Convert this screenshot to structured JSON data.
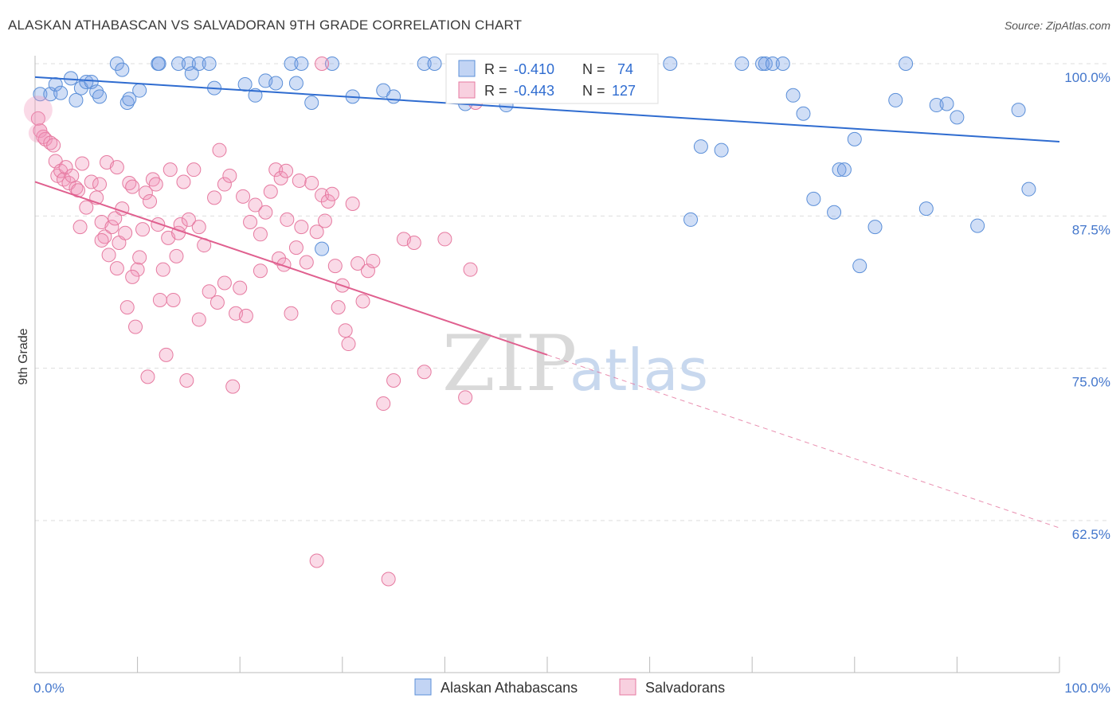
{
  "title": "ALASKAN ATHABASCAN VS SALVADORAN 9TH GRADE CORRELATION CHART",
  "source": "Source: ZipAtlas.com",
  "watermark": {
    "zip": "ZIP",
    "atlas": "atlas"
  },
  "colors": {
    "blue": "#5b8fd8",
    "blue_fill": "rgba(120,160,230,0.35)",
    "pink": "#e67aa0",
    "pink_fill": "rgba(240,150,185,0.35)",
    "blue_line": "#2f6cd0",
    "pink_line": "#e0608f",
    "grid": "#dddddd",
    "tick_text": "#4477cc"
  },
  "legend": {
    "r_label": "R =",
    "n_label": "N =",
    "series": [
      {
        "r": "-0.410",
        "n": "74"
      },
      {
        "r": "-0.443",
        "n": "127"
      }
    ]
  },
  "chart_data": {
    "type": "scatter",
    "title": "ALASKAN ATHABASCAN VS SALVADORAN 9TH GRADE CORRELATION CHART",
    "xlabel": "",
    "ylabel": "9th Grade",
    "xlim": [
      0,
      100
    ],
    "ylim": [
      52,
      101
    ],
    "x_tick_labels": [
      "0.0%",
      "100.0%"
    ],
    "y_ticks": [
      100,
      87.5,
      75,
      62.5
    ],
    "y_tick_labels": [
      "100.0%",
      "87.5%",
      "75.0%",
      "62.5%"
    ],
    "grid": true,
    "legend_position": "top-center",
    "series": [
      {
        "name": "Alaskan Athabascans",
        "color": "#5b8fd8",
        "trend": {
          "x": [
            0,
            100
          ],
          "y": [
            98.9,
            93.6
          ],
          "dashed_from": null
        },
        "points": [
          [
            0.5,
            97.5
          ],
          [
            1.5,
            97.5
          ],
          [
            2,
            98.3
          ],
          [
            2.5,
            97.6
          ],
          [
            3.5,
            98.8
          ],
          [
            4,
            97.0
          ],
          [
            4.5,
            98.0
          ],
          [
            5,
            98.5
          ],
          [
            5.5,
            98.5
          ],
          [
            6,
            97.7
          ],
          [
            6.3,
            97.3
          ],
          [
            8,
            100
          ],
          [
            8.5,
            99.5
          ],
          [
            9,
            96.8
          ],
          [
            9.2,
            97.1
          ],
          [
            10.2,
            97.8
          ],
          [
            12,
            100
          ],
          [
            12.1,
            100
          ],
          [
            14,
            100
          ],
          [
            15,
            100
          ],
          [
            15.3,
            99.2
          ],
          [
            16,
            100
          ],
          [
            17,
            100
          ],
          [
            17.5,
            98
          ],
          [
            20.5,
            98.3
          ],
          [
            21.5,
            97.4
          ],
          [
            22.5,
            98.6
          ],
          [
            23.5,
            98.4
          ],
          [
            25,
            100
          ],
          [
            25.5,
            98.4
          ],
          [
            26,
            100
          ],
          [
            27,
            96.8
          ],
          [
            28,
            84.8
          ],
          [
            29,
            100
          ],
          [
            31,
            97.3
          ],
          [
            34,
            97.8
          ],
          [
            35,
            97.3
          ],
          [
            38,
            100
          ],
          [
            39,
            100
          ],
          [
            42,
            96.7
          ],
          [
            44,
            100
          ],
          [
            46,
            96.6
          ],
          [
            48,
            100
          ],
          [
            50,
            100
          ],
          [
            54,
            100
          ],
          [
            56,
            98.2
          ],
          [
            58,
            100
          ],
          [
            65,
            93.2
          ],
          [
            67,
            92.9
          ],
          [
            69,
            100
          ],
          [
            71,
            100
          ],
          [
            71.3,
            100
          ],
          [
            72,
            100
          ],
          [
            73,
            100
          ],
          [
            74,
            97.4
          ],
          [
            75,
            95.9
          ],
          [
            76,
            88.9
          ],
          [
            78,
            87.8
          ],
          [
            78.5,
            91.3
          ],
          [
            79,
            91.3
          ],
          [
            80,
            93.8
          ],
          [
            80.5,
            83.4
          ],
          [
            82,
            86.6
          ],
          [
            84,
            97
          ],
          [
            85,
            100
          ],
          [
            87,
            88.1
          ],
          [
            88,
            96.6
          ],
          [
            89,
            96.7
          ],
          [
            90,
            95.6
          ],
          [
            92,
            86.7
          ],
          [
            96,
            96.2
          ],
          [
            97,
            89.7
          ],
          [
            64,
            87.2
          ],
          [
            62,
            100
          ]
        ]
      },
      {
        "name": "Salvadorans",
        "color": "#e67aa0",
        "trend": {
          "x": [
            0,
            100
          ],
          "y": [
            90.3,
            61.9
          ],
          "dashed_from": 50
        },
        "points": [
          [
            0.3,
            95.5
          ],
          [
            0.5,
            94.5
          ],
          [
            0.8,
            94
          ],
          [
            1,
            93.8
          ],
          [
            1.5,
            93.5
          ],
          [
            1.8,
            93.3
          ],
          [
            2,
            92
          ],
          [
            2.2,
            90.8
          ],
          [
            2.5,
            91.2
          ],
          [
            2.8,
            90.5
          ],
          [
            3,
            91.5
          ],
          [
            3.3,
            90.2
          ],
          [
            3.6,
            90.8
          ],
          [
            4,
            89.8
          ],
          [
            4.2,
            89.6
          ],
          [
            4.4,
            86.6
          ],
          [
            4.6,
            91.8
          ],
          [
            5,
            88.2
          ],
          [
            5.5,
            90.3
          ],
          [
            6,
            89
          ],
          [
            6.3,
            90.1
          ],
          [
            6.5,
            87
          ],
          [
            6.8,
            85.8
          ],
          [
            7,
            91.9
          ],
          [
            7.2,
            84.3
          ],
          [
            7.5,
            86.6
          ],
          [
            7.8,
            87.3
          ],
          [
            8,
            83.2
          ],
          [
            8.2,
            85.3
          ],
          [
            8.5,
            88.1
          ],
          [
            8.8,
            86.1
          ],
          [
            9,
            80
          ],
          [
            9.2,
            90.2
          ],
          [
            9.5,
            89.9
          ],
          [
            9.8,
            78.4
          ],
          [
            10,
            83.1
          ],
          [
            10.2,
            84.1
          ],
          [
            10.5,
            86.4
          ],
          [
            10.8,
            89.4
          ],
          [
            11,
            74.3
          ],
          [
            11.2,
            88.7
          ],
          [
            11.5,
            90.5
          ],
          [
            11.8,
            90.1
          ],
          [
            12,
            86.8
          ],
          [
            12.2,
            80.6
          ],
          [
            12.5,
            83.1
          ],
          [
            12.8,
            76.1
          ],
          [
            13,
            85.7
          ],
          [
            13.2,
            91.3
          ],
          [
            13.5,
            80.6
          ],
          [
            13.8,
            84.2
          ],
          [
            14,
            86.1
          ],
          [
            14.2,
            86.8
          ],
          [
            14.5,
            90.3
          ],
          [
            14.8,
            74
          ],
          [
            15,
            87.2
          ],
          [
            15.5,
            91.3
          ],
          [
            16,
            86.6
          ],
          [
            16.5,
            85.1
          ],
          [
            17,
            81.3
          ],
          [
            17.5,
            89
          ],
          [
            17.8,
            80.4
          ],
          [
            18,
            92.9
          ],
          [
            18.5,
            90.1
          ],
          [
            19,
            90.8
          ],
          [
            19.3,
            73.5
          ],
          [
            19.6,
            79.5
          ],
          [
            20,
            81.6
          ],
          [
            20.3,
            89.1
          ],
          [
            20.6,
            79.3
          ],
          [
            21,
            87
          ],
          [
            21.5,
            88.4
          ],
          [
            22,
            83
          ],
          [
            22.5,
            87.8
          ],
          [
            23,
            89.5
          ],
          [
            23.5,
            91.3
          ],
          [
            23.8,
            84
          ],
          [
            24,
            90.6
          ],
          [
            24.3,
            83.5
          ],
          [
            24.6,
            87.2
          ],
          [
            25,
            79.5
          ],
          [
            25.5,
            84.9
          ],
          [
            25.8,
            90.4
          ],
          [
            26,
            86.6
          ],
          [
            26.5,
            83.7
          ],
          [
            27,
            90.2
          ],
          [
            27.5,
            86.2
          ],
          [
            28,
            89.2
          ],
          [
            28.3,
            87.1
          ],
          [
            28.6,
            88.7
          ],
          [
            29,
            89.3
          ],
          [
            29.3,
            83.4
          ],
          [
            29.6,
            80
          ],
          [
            30,
            81.8
          ],
          [
            30.3,
            78.1
          ],
          [
            30.6,
            77
          ],
          [
            31,
            88.5
          ],
          [
            31.5,
            83.6
          ],
          [
            32,
            80.5
          ],
          [
            32.5,
            83
          ],
          [
            33,
            83.8
          ],
          [
            34,
            72.1
          ],
          [
            35,
            74
          ],
          [
            36,
            85.6
          ],
          [
            37,
            85.3
          ],
          [
            38,
            74.7
          ],
          [
            40,
            85.6
          ],
          [
            42,
            72.6
          ],
          [
            42.5,
            83.1
          ],
          [
            28,
            100
          ],
          [
            43,
            96.8
          ],
          [
            27.5,
            59.2
          ],
          [
            34.5,
            57.7
          ],
          [
            8,
            91.5
          ],
          [
            6.5,
            85.5
          ],
          [
            9.5,
            82.5
          ],
          [
            16,
            79
          ],
          [
            18.5,
            82
          ],
          [
            22,
            86
          ],
          [
            24.5,
            91.2
          ]
        ]
      }
    ]
  },
  "bottom_legend": [
    {
      "label": "Alaskan Athabascans"
    },
    {
      "label": "Salvadorans"
    }
  ]
}
